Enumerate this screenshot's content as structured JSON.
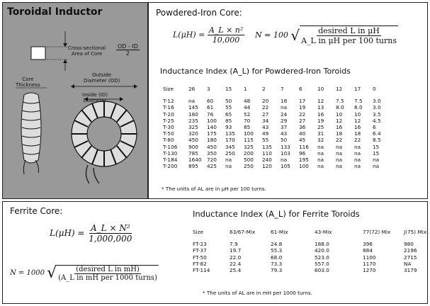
{
  "left": {
    "title": "Toroidal Inductor",
    "cross_section_label": [
      "Cross-sectional",
      "Area of Core"
    ],
    "area_formula": {
      "num": "OD - ID",
      "den": "2"
    },
    "outside_label": [
      "Outside",
      "Diameter (OD)"
    ],
    "inside_label": [
      "Inside (ID)",
      "Diameter"
    ],
    "core_label": [
      "Core",
      "Thickness"
    ]
  },
  "powdered": {
    "title": "Powdered-Iron Core:",
    "eq1": {
      "lhs": "L(μH) =",
      "num": "A_L × n²",
      "den": "10,000"
    },
    "eq2": {
      "lhs": "N = 100",
      "num": "desired L in μH",
      "den": "A_L in μH per 100 turns"
    },
    "table_title": "Inductance Index (A_L) for Powdered-Iron Toroids",
    "columns": [
      "Size",
      "26",
      "3",
      "15",
      "1",
      "2",
      "7",
      "6",
      "10",
      "12",
      "17",
      "0"
    ],
    "rows": [
      [
        "T-12",
        "na",
        "60",
        "50",
        "48",
        "20",
        "18",
        "17",
        "12",
        "7.5",
        "7.5",
        "3.0"
      ],
      [
        "T-16",
        "145",
        "61",
        "55",
        "44",
        "22",
        "na",
        "19",
        "13",
        "8.0",
        "8.0",
        "3.0"
      ],
      [
        "T-20",
        "180",
        "76",
        "65",
        "52",
        "27",
        "24",
        "22",
        "16",
        "10",
        "10",
        "3.5"
      ],
      [
        "T-25",
        "235",
        "100",
        "85",
        "70",
        "34",
        "29",
        "27",
        "19",
        "12",
        "12",
        "4.5"
      ],
      [
        "T-30",
        "325",
        "140",
        "93",
        "85",
        "43",
        "37",
        "36",
        "25",
        "16",
        "16",
        "6"
      ],
      [
        "T-50",
        "320",
        "175",
        "135",
        "100",
        "49",
        "43",
        "40",
        "31",
        "18",
        "18",
        "6.4"
      ],
      [
        "T-80",
        "450",
        "180",
        "170",
        "115",
        "55",
        "50",
        "45",
        "32",
        "22",
        "22",
        "8.5"
      ],
      [
        "T-106",
        "900",
        "450",
        "345",
        "325",
        "135",
        "133",
        "116",
        "na",
        "na",
        "na",
        "15"
      ],
      [
        "T-130",
        "785",
        "350",
        "250",
        "200",
        "110",
        "103",
        "96",
        "na",
        "na",
        "na",
        "15"
      ],
      [
        "T-184",
        "1640",
        "720",
        "na",
        "500",
        "240",
        "na",
        "195",
        "na",
        "na",
        "na",
        "na"
      ],
      [
        "T-200",
        "895",
        "425",
        "na",
        "250",
        "120",
        "105",
        "100",
        "na",
        "na",
        "na",
        "na"
      ]
    ],
    "footnote": "* The units of AL are in μH per 100 turns."
  },
  "ferrite": {
    "title": "Ferrite Core:",
    "eq1": {
      "lhs": "L(μH) =",
      "num": "A_L × N²",
      "den": "1,000,000"
    },
    "eq2": {
      "lhs": "N = 1000",
      "num": "(desired L in mH)",
      "den": "(A_L in mH per 1000 turns)"
    },
    "table_title": "Inductance Index (A_L) for Ferrite Toroids",
    "columns": [
      "Size",
      "63/67-Mix",
      "61-Mix",
      "43-Mix",
      "77(72) Mix",
      "J(75) Mix"
    ],
    "rows": [
      [
        "FT-23",
        "7.9",
        "24.8",
        "188.0",
        "396",
        "980"
      ],
      [
        "FT-37",
        "19.7",
        "55.3",
        "420.0",
        "884",
        "2196"
      ],
      [
        "FT-50",
        "22.0",
        "68.0",
        "523.0",
        "1100",
        "2715"
      ],
      [
        "FT-82",
        "22.4",
        "73.3",
        "557.0",
        "1170",
        "NA"
      ],
      [
        "FT-114",
        "25.4",
        "79.3",
        "603.0",
        "1270",
        "3179"
      ]
    ],
    "footnote": "* The units of AL are in mH per 1000 turns."
  }
}
